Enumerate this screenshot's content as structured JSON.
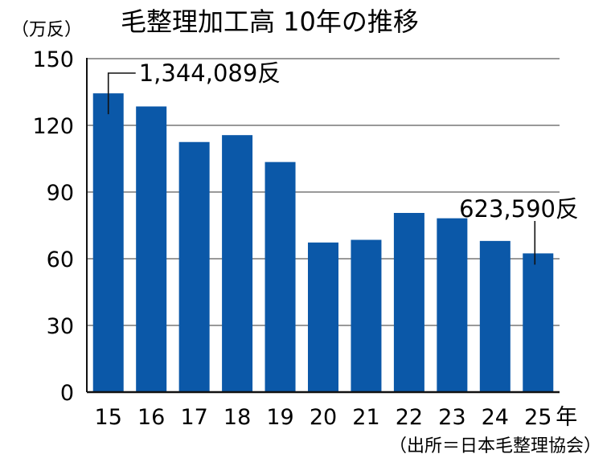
{
  "chart_data": {
    "type": "bar",
    "title": "毛整理加工高 10年の推移",
    "unit_label": "（万反）",
    "categories": [
      "15",
      "16",
      "17",
      "18",
      "19",
      "20",
      "21",
      "22",
      "23",
      "24",
      "25"
    ],
    "x_suffix": "年",
    "values": [
      134.4,
      128.5,
      112.5,
      115.6,
      103.5,
      67.3,
      68.5,
      80.6,
      78.2,
      68.0,
      62.4
    ],
    "ylim": [
      0,
      150
    ],
    "yticks": [
      "0",
      "30",
      "60",
      "90",
      "120",
      "150"
    ],
    "grid": true,
    "bar_color": "#0b58a8",
    "annotations": [
      {
        "category": "15",
        "text": "1,344,089反"
      },
      {
        "category": "25",
        "text": "623,590反"
      }
    ],
    "source": "（出所＝日本毛整理協会）"
  }
}
